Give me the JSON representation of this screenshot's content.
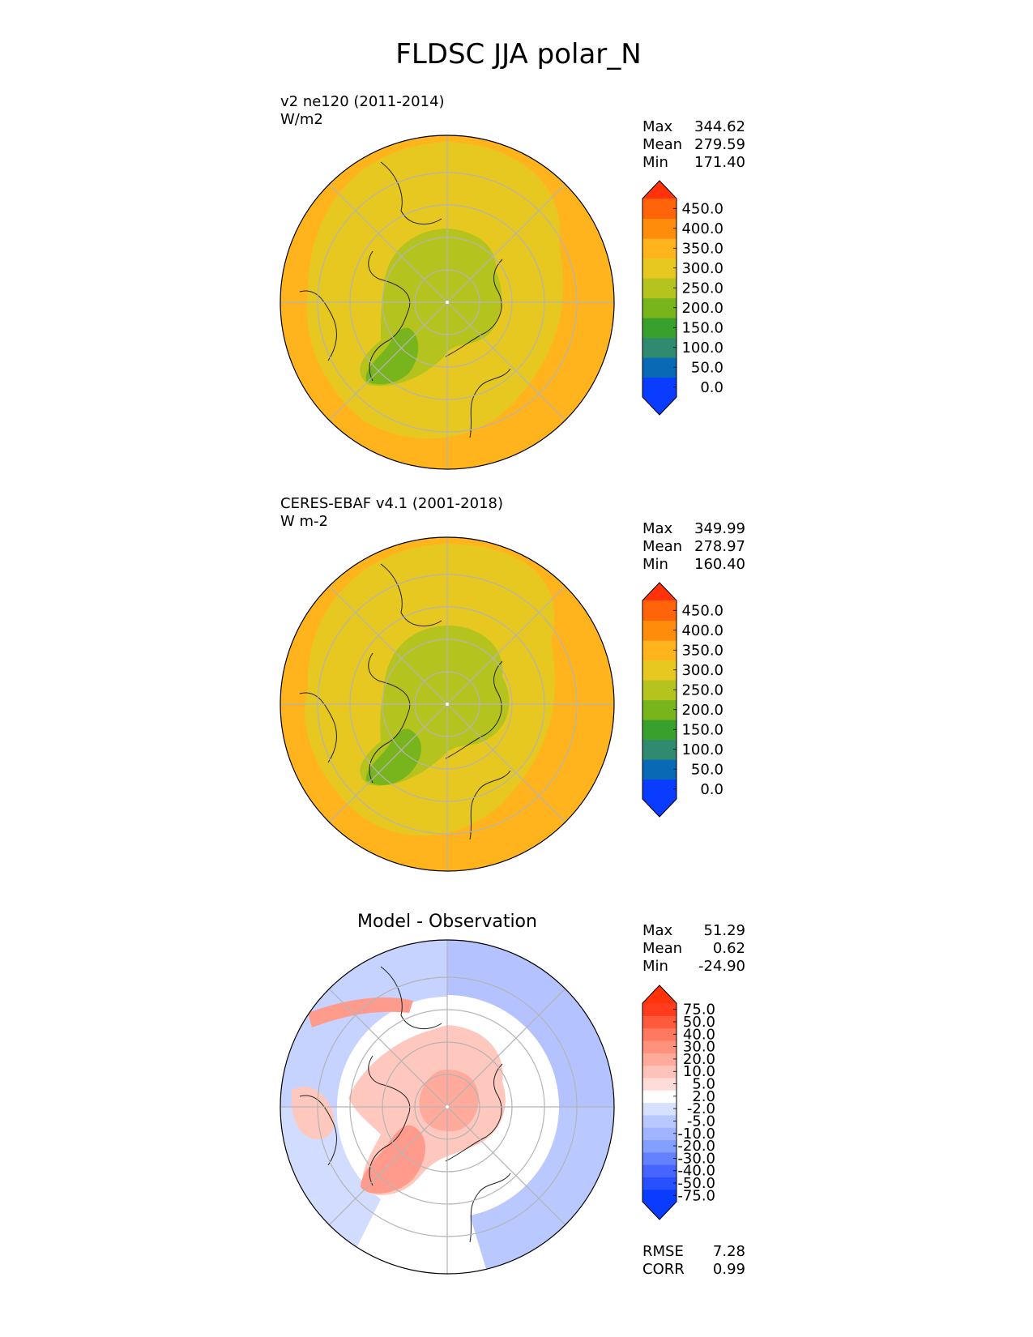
{
  "figure": {
    "title": "FLDSC JJA polar_N"
  },
  "panels": [
    {
      "id": "test",
      "header_line1": "v2 ne120 (2011-2014)",
      "header_line2": "W/m2",
      "stats": [
        {
          "label": "Max",
          "value": "344.62"
        },
        {
          "label": "Mean",
          "value": "279.59"
        },
        {
          "label": "Min",
          "value": "171.40"
        }
      ]
    },
    {
      "id": "ref",
      "header_line1": "CERES-EBAF v4.1 (2001-2018)",
      "header_line2": "W m-2",
      "stats": [
        {
          "label": "Max",
          "value": "349.99"
        },
        {
          "label": "Mean",
          "value": "278.97"
        },
        {
          "label": "Min",
          "value": "160.40"
        }
      ]
    },
    {
      "id": "diff",
      "title": "Model - Observation",
      "stats": [
        {
          "label": "Max",
          "value": "51.29"
        },
        {
          "label": "Mean",
          "value": "0.62"
        },
        {
          "label": "Min",
          "value": "-24.90"
        }
      ],
      "metrics": [
        {
          "label": "RMSE",
          "value": "7.28"
        },
        {
          "label": "CORR",
          "value": "0.99"
        }
      ]
    }
  ],
  "colorbars": {
    "main": {
      "colors": [
        "#0a3cff",
        "#0a69b4",
        "#2f8a70",
        "#3aa02d",
        "#78b41c",
        "#b4c31e",
        "#e6c820",
        "#ffb41e",
        "#ff8c0a",
        "#ff640a"
      ],
      "under": "#0a3cff",
      "over": "#ff320a",
      "tick_labels": [
        "0.0",
        "50.0",
        "100.0",
        "150.0",
        "200.0",
        "250.0",
        "300.0",
        "350.0",
        "400.0",
        "450.0"
      ]
    },
    "diff": {
      "colors": [
        "#0a3cff",
        "#2850ff",
        "#4664ff",
        "#6482ff",
        "#82a0ff",
        "#a0b4ff",
        "#b9c8ff",
        "#d7e1ff",
        "#ffffff",
        "#ffdcd7",
        "#ffc3b9",
        "#ffaa9b",
        "#ff917d",
        "#ff7860",
        "#ff5a3c",
        "#ff3c1e"
      ],
      "under": "#0a3cff",
      "over": "#ff320a",
      "tick_labels": [
        "-75.0",
        "-50.0",
        "-40.0",
        "-30.0",
        "-20.0",
        "-10.0",
        "-5.0",
        "-2.0",
        "2.0",
        "5.0",
        "10.0",
        "20.0",
        "30.0",
        "40.0",
        "50.0",
        "75.0"
      ]
    }
  },
  "chart_data": [
    {
      "type": "heatmap",
      "title": "v2 ne120 (2011-2014)",
      "units": "W/m2",
      "projection": "north polar stereographic",
      "region": "polar_N",
      "season": "JJA",
      "variable": "FLDSC",
      "colorbar_levels": [
        0,
        50,
        100,
        150,
        200,
        250,
        300,
        350,
        400,
        450
      ],
      "max": 344.62,
      "mean": 279.59,
      "min": 171.4
    },
    {
      "type": "heatmap",
      "title": "CERES-EBAF v4.1 (2001-2018)",
      "units": "W m-2",
      "projection": "north polar stereographic",
      "region": "polar_N",
      "season": "JJA",
      "variable": "FLDSC",
      "colorbar_levels": [
        0,
        50,
        100,
        150,
        200,
        250,
        300,
        350,
        400,
        450
      ],
      "max": 349.99,
      "mean": 278.97,
      "min": 160.4
    },
    {
      "type": "heatmap",
      "title": "Model - Observation",
      "projection": "north polar stereographic",
      "region": "polar_N",
      "season": "JJA",
      "variable": "FLDSC",
      "colorbar_levels": [
        -75,
        -50,
        -40,
        -30,
        -20,
        -10,
        -5,
        -2,
        2,
        5,
        10,
        20,
        30,
        40,
        50,
        75
      ],
      "max": 51.29,
      "mean": 0.62,
      "min": -24.9,
      "rmse": 7.28,
      "corr": 0.99
    }
  ]
}
